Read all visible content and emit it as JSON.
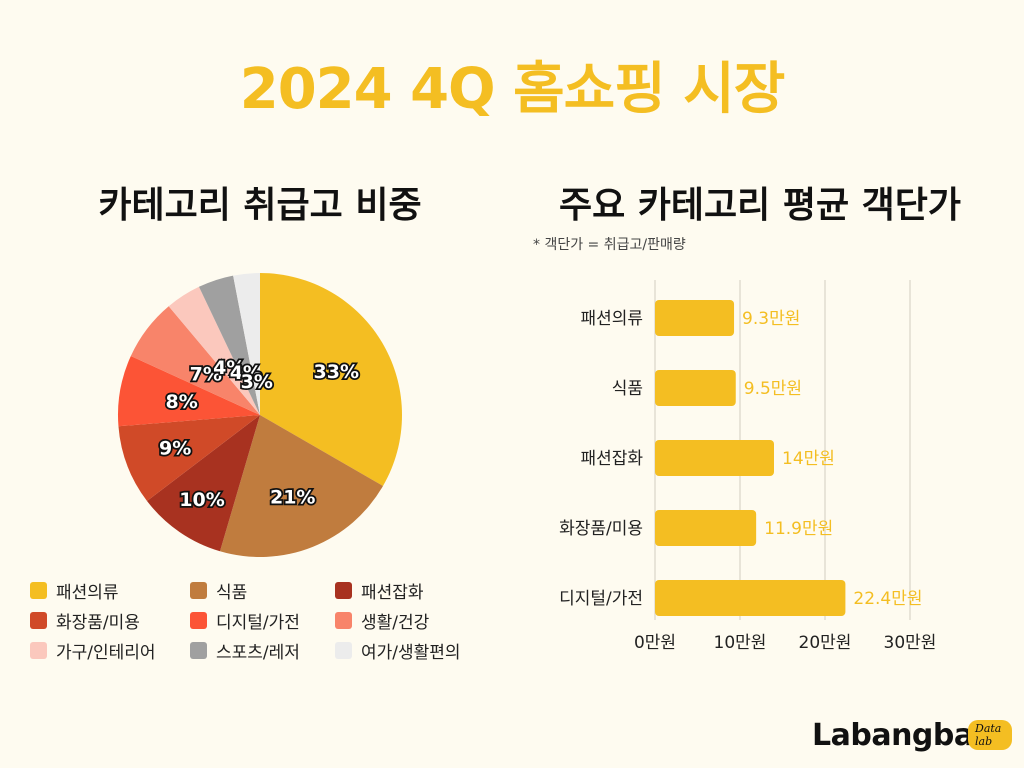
{
  "main_title": "2024 4Q 홈쇼핑 시장",
  "left_title": "카테고리 취급고 비중",
  "right_title": "주요 카테고리 평균 객단가",
  "note": "* 객단가 = 취급고/판매량",
  "logo": {
    "text": "Labangba",
    "badge": "Data lab"
  },
  "chart_data": [
    {
      "type": "pie",
      "title": "카테고리 취급고 비중",
      "legend_position": "bottom",
      "slices": [
        {
          "label": "패션의류",
          "value": 33,
          "display": "33%",
          "color": "#f4be22"
        },
        {
          "label": "식품",
          "value": 21,
          "display": "21%",
          "color": "#c07c3e"
        },
        {
          "label": "패션잡화",
          "value": 10,
          "display": "10%",
          "color": "#a83220"
        },
        {
          "label": "화장품/미용",
          "value": 9,
          "display": "9%",
          "color": "#d04a28"
        },
        {
          "label": "디지털/가전",
          "value": 8,
          "display": "8%",
          "color": "#fc5436"
        },
        {
          "label": "생활/건강",
          "value": 7,
          "display": "7%",
          "color": "#f8846a"
        },
        {
          "label": "가구/인테리어",
          "value": 4,
          "display": "4%",
          "color": "#fbc8bd"
        },
        {
          "label": "스포츠/레저",
          "value": 4,
          "display": "4%",
          "color": "#a0a0a0"
        },
        {
          "label": "여가/생활편의",
          "value": 3,
          "display": "3%",
          "color": "#ececec"
        }
      ]
    },
    {
      "type": "bar",
      "orientation": "horizontal",
      "title": "주요 카테고리 평균 객단가",
      "categories": [
        "패션의류",
        "식품",
        "패션잡화",
        "화장품/미용",
        "디지털/가전"
      ],
      "values": [
        9.3,
        9.5,
        14,
        11.9,
        22.4
      ],
      "value_labels": [
        "9.3만원",
        "9.5만원",
        "14만원",
        "11.9만원",
        "22.4만원"
      ],
      "xlim": [
        0,
        30
      ],
      "ticks": [
        0,
        10,
        20,
        30
      ],
      "tick_labels": [
        "0만원",
        "10만원",
        "20만원",
        "30만원"
      ],
      "grid": true,
      "bar_color": "#f4be22",
      "label_color": "#f4be22"
    }
  ]
}
